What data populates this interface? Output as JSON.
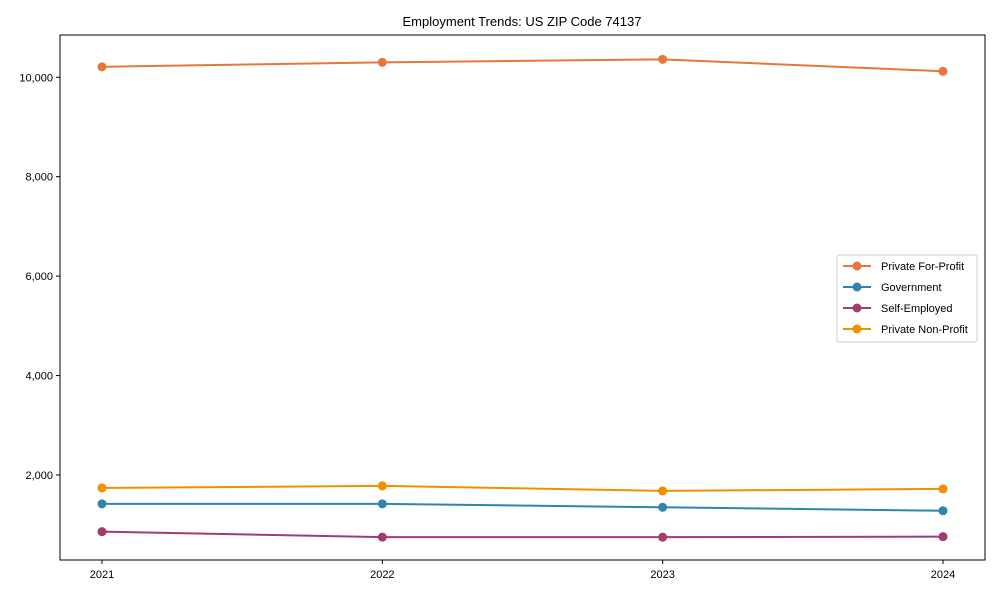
{
  "chart_data": {
    "type": "line",
    "title": "Employment Trends: US ZIP Code 74137",
    "xlabel": "",
    "ylabel": "",
    "x": [
      "2021",
      "2022",
      "2023",
      "2024"
    ],
    "ylim": [
      290,
      10850
    ],
    "yticks": [
      2000,
      4000,
      6000,
      8000,
      10000
    ],
    "ytick_labels": [
      "2,000",
      "4,000",
      "6,000",
      "8,000",
      "10,000"
    ],
    "grid": false,
    "legend_position": "center-right",
    "series": [
      {
        "name": "Private For-Profit",
        "color": "#e8763a",
        "values": [
          10210,
          10300,
          10360,
          10120
        ]
      },
      {
        "name": "Government",
        "color": "#2e86ab",
        "values": [
          1420,
          1420,
          1350,
          1280
        ]
      },
      {
        "name": "Self-Employed",
        "color": "#a23b72",
        "values": [
          860,
          750,
          750,
          760
        ]
      },
      {
        "name": "Private Non-Profit",
        "color": "#f18f01",
        "values": [
          1740,
          1780,
          1680,
          1720
        ]
      }
    ]
  }
}
